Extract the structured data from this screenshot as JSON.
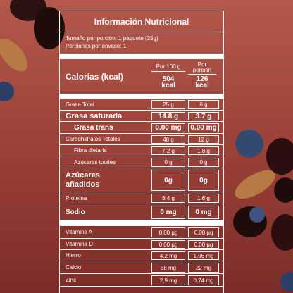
{
  "title": "Información Nutricional",
  "serving_size": "Tamaño por porción: 1 paquete (25g)",
  "servings": "Porciones por envase: 1",
  "header": {
    "label": "Calorías (kcal)",
    "col1": "Por 100 g",
    "col2": "Por porción",
    "col1_value": "504 kcal",
    "col2_value": "126 kcal"
  },
  "nutrients": [
    {
      "label": "Grasa Total",
      "per100": "25 g",
      "perServing": "6 g"
    },
    {
      "label": "Grasa saturada",
      "per100": "14.8 g",
      "perServing": "3.7 g"
    },
    {
      "label": "Grasa trans",
      "per100": "0.00 mg",
      "perServing": "0.00 mg"
    },
    {
      "label": "Carbohidratos Totales",
      "per100": "48 g",
      "perServing": "12 g"
    },
    {
      "label": "Fibra dietaria",
      "per100": "7.2 g",
      "perServing": "1.8 g"
    },
    {
      "label": "Azúcares totales",
      "per100": "0 g",
      "perServing": "0 g"
    },
    {
      "label": "Azúcares añadidos",
      "per100": "0g",
      "perServing": "0g"
    },
    {
      "label": "Proteína",
      "per100": "6.4 g",
      "perServing": "1.6 g"
    },
    {
      "label": "Sodio",
      "per100": "0 mg",
      "perServing": "0 mg"
    }
  ],
  "vitamins": [
    {
      "label": "Vitamina A",
      "per100": "0,00 µg",
      "perServing": "0,00 µg"
    },
    {
      "label": "Vitamina D",
      "per100": "0,00 µg",
      "perServing": "0,00 µg"
    },
    {
      "label": "Hierro",
      "per100": "4,2 mg",
      "perServing": "1,06 mg"
    },
    {
      "label": "Calcio",
      "per100": "88 mg",
      "perServing": "22 mg"
    },
    {
      "label": "Zinc",
      "per100": "2,9 mg",
      "perServing": "0,74 mg"
    }
  ]
}
